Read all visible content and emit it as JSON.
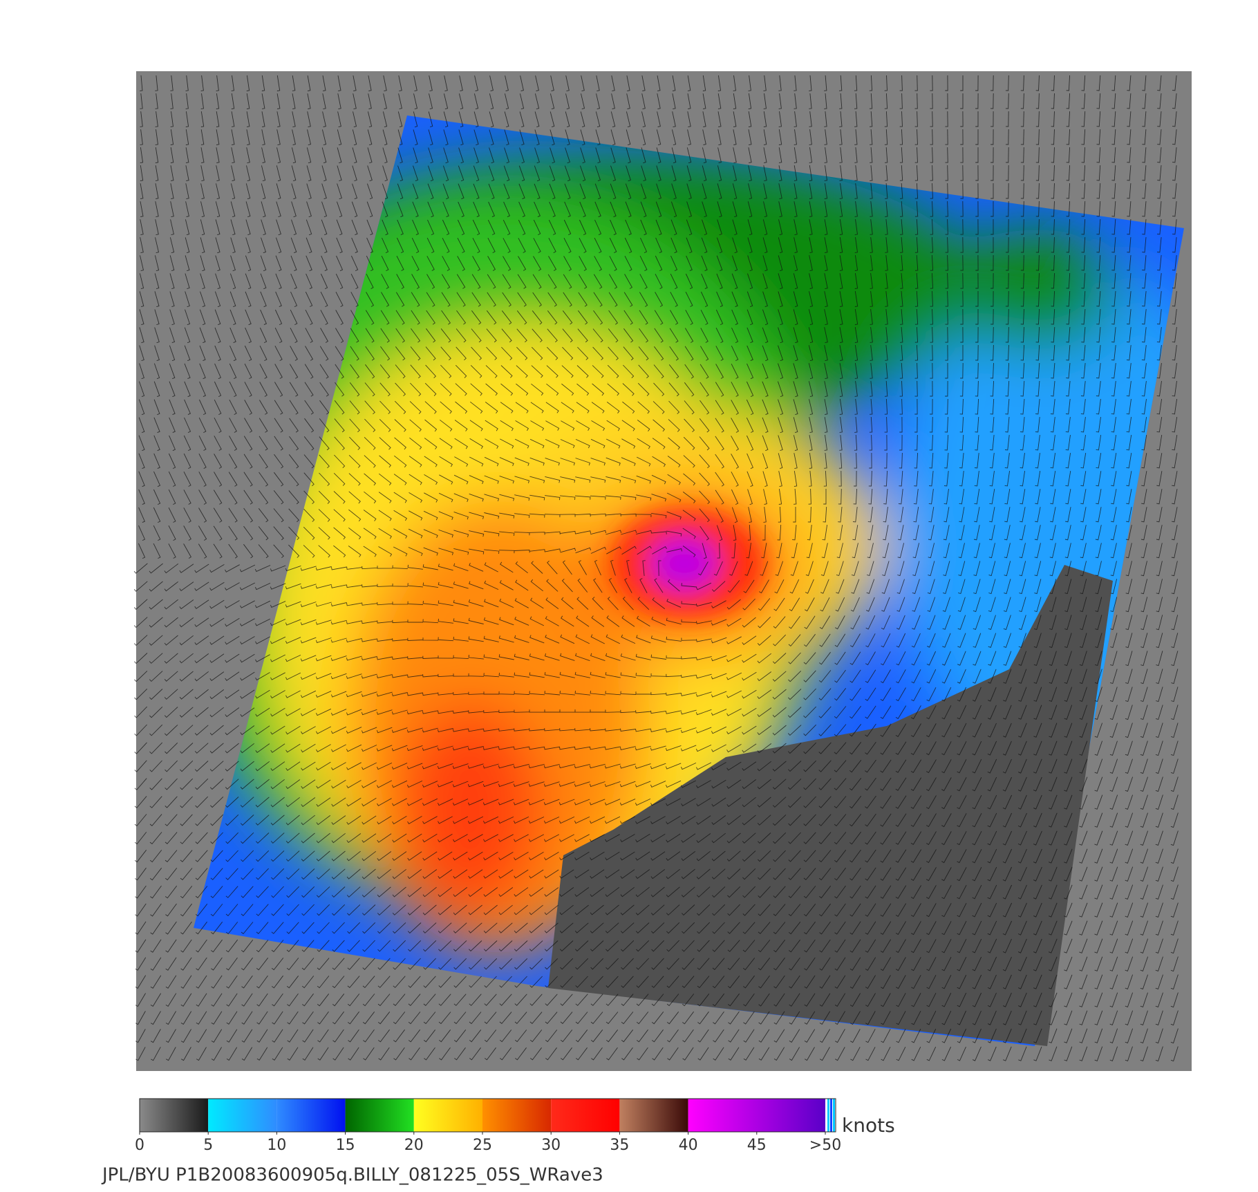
{
  "colorbar": {
    "ticks": [
      0,
      5,
      10,
      15,
      20,
      25,
      30,
      35,
      40,
      45,
      {
        "value": 50,
        "label": ">50"
      }
    ],
    "unit": "knots",
    "segments": [
      {
        "from": 0,
        "to": 5,
        "colors": [
          "#8a8a8a",
          "#1a1a1a"
        ]
      },
      {
        "from": 5,
        "to": 10,
        "colors": [
          "#00eaff",
          "#2f8cff"
        ]
      },
      {
        "from": 10,
        "to": 15,
        "colors": [
          "#2f8cff",
          "#0010f0"
        ]
      },
      {
        "from": 15,
        "to": 20,
        "colors": [
          "#006400",
          "#22e022"
        ]
      },
      {
        "from": 20,
        "to": 25,
        "colors": [
          "#ffff20",
          "#ffb000"
        ]
      },
      {
        "from": 25,
        "to": 30,
        "colors": [
          "#ff9000",
          "#d82800"
        ]
      },
      {
        "from": 30,
        "to": 35,
        "colors": [
          "#ff2a1a",
          "#ff0000"
        ]
      },
      {
        "from": 35,
        "to": 40,
        "colors": [
          "#c08060",
          "#3a0a08"
        ]
      },
      {
        "from": 40,
        "to": 50,
        "colors": [
          "#ff00ff",
          "#5a00c8"
        ]
      }
    ]
  },
  "footer": "JPL/BYU  P1B20083600905q.BILLY_081225_05S_WRave3"
}
